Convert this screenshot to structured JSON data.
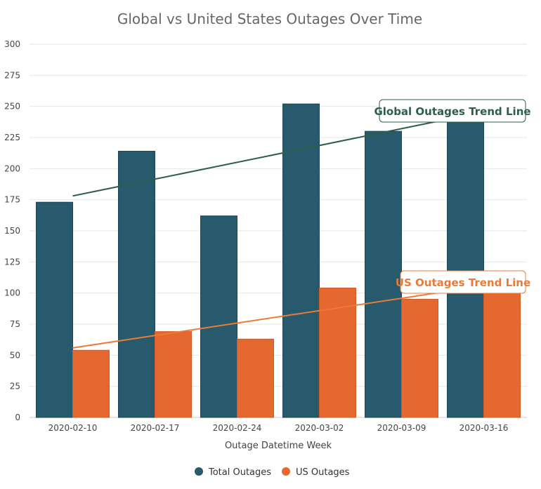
{
  "chart_data": {
    "type": "bar",
    "title": "Global vs United States Outages Over Time",
    "xlabel": "Outage Datetime Week",
    "ylabel": "",
    "ylim": [
      0,
      300
    ],
    "yticks": [
      0,
      25,
      50,
      75,
      100,
      125,
      150,
      175,
      200,
      225,
      250,
      275,
      300
    ],
    "grid": true,
    "legend_position": "bottom",
    "categories": [
      "2020-02-10",
      "2020-02-17",
      "2020-02-24",
      "2020-03-02",
      "2020-03-09",
      "2020-03-16"
    ],
    "series": [
      {
        "name": "Total Outages",
        "color": "#275a6c",
        "values": [
          173,
          214,
          162,
          252,
          230,
          240
        ]
      },
      {
        "name": "US Outages",
        "color": "#e4682f",
        "values": [
          54,
          69,
          63,
          104,
          95,
          100
        ]
      }
    ],
    "trend_lines": [
      {
        "label": "Global Outages Trend Line",
        "series": "Total Outages",
        "color": "#2f5e48"
      },
      {
        "label": "US Outages Trend Line",
        "series": "US Outages",
        "color": "#e97b3a"
      }
    ]
  }
}
